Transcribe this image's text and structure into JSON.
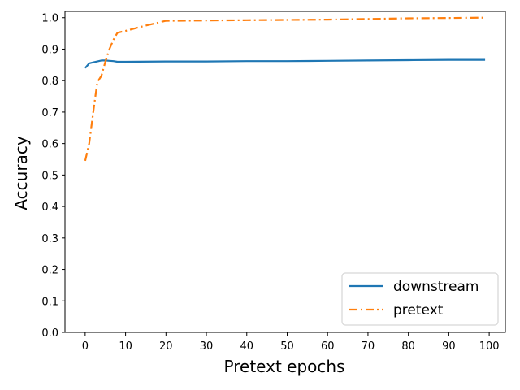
{
  "chart_data": {
    "type": "line",
    "title": "",
    "xlabel": "Pretext epochs",
    "ylabel": "Accuracy",
    "xlim": [
      -5,
      104
    ],
    "ylim": [
      0.0,
      1.02
    ],
    "xticks": [
      0,
      10,
      20,
      30,
      40,
      50,
      60,
      70,
      80,
      90,
      100
    ],
    "yticks": [
      0.0,
      0.1,
      0.2,
      0.3,
      0.4,
      0.5,
      0.6,
      0.7,
      0.8,
      0.9,
      1.0
    ],
    "xtick_labels": [
      "0",
      "10",
      "20",
      "30",
      "40",
      "50",
      "60",
      "70",
      "80",
      "90",
      "100"
    ],
    "ytick_labels": [
      "0.0",
      "0.1",
      "0.2",
      "0.3",
      "0.4",
      "0.5",
      "0.6",
      "0.7",
      "0.8",
      "0.9",
      "1.0"
    ],
    "grid": false,
    "legend_position": "lower-right",
    "series": [
      {
        "name": "downstream",
        "color": "#1f77b4",
        "linestyle": "solid",
        "x": [
          0,
          1,
          2,
          3,
          4,
          5,
          6,
          7,
          8,
          10,
          20,
          30,
          40,
          50,
          60,
          70,
          80,
          90,
          99
        ],
        "y": [
          0.84,
          0.855,
          0.858,
          0.861,
          0.864,
          0.864,
          0.863,
          0.862,
          0.86,
          0.86,
          0.861,
          0.861,
          0.862,
          0.862,
          0.863,
          0.864,
          0.865,
          0.866,
          0.866
        ]
      },
      {
        "name": "pretext",
        "color": "#ff7f0e",
        "linestyle": "dashdot",
        "x": [
          0,
          1,
          2,
          3,
          4,
          5,
          6,
          7,
          8,
          10,
          15,
          20,
          30,
          40,
          50,
          60,
          70,
          80,
          90,
          99
        ],
        "y": [
          0.545,
          0.6,
          0.7,
          0.795,
          0.815,
          0.86,
          0.9,
          0.93,
          0.952,
          0.958,
          0.975,
          0.99,
          0.991,
          0.992,
          0.993,
          0.994,
          0.996,
          0.998,
          0.999,
          1.0
        ]
      }
    ]
  }
}
